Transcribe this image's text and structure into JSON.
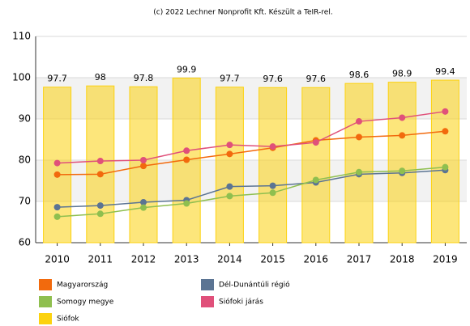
{
  "chart_data": {
    "type": "bar",
    "title": "(c) 2022 Lechner Nonprofit Kft. Készült a TeIR-rel.",
    "categories": [
      "2010",
      "2011",
      "2012",
      "2013",
      "2014",
      "2015",
      "2016",
      "2017",
      "2018",
      "2019"
    ],
    "ylim": [
      60,
      110
    ],
    "yticks": [
      60,
      70,
      80,
      90,
      100,
      110
    ],
    "grid": true,
    "series": [
      {
        "name": "Magyarország",
        "type": "line",
        "color": "#f26a0d",
        "values": [
          76.5,
          76.6,
          78.6,
          80.1,
          81.5,
          83.0,
          84.8,
          85.6,
          86.0,
          87.0
        ]
      },
      {
        "name": "Dél-Dunántúli régió",
        "type": "line",
        "color": "#5b7493",
        "values": [
          68.6,
          69.0,
          69.8,
          70.3,
          73.6,
          73.8,
          74.6,
          76.6,
          76.9,
          77.6
        ]
      },
      {
        "name": "Somogy megye",
        "type": "line",
        "color": "#8fbf4f",
        "values": [
          66.3,
          67.0,
          68.5,
          69.5,
          71.3,
          72.1,
          75.2,
          77.1,
          77.4,
          78.3
        ]
      },
      {
        "name": "Siófoki járás",
        "type": "line",
        "color": "#e0507a",
        "values": [
          79.3,
          79.8,
          80.0,
          82.3,
          83.7,
          83.3,
          84.3,
          89.4,
          90.3,
          91.8
        ]
      },
      {
        "name": "Siófok",
        "type": "bar",
        "color": "#fcd20f",
        "values": [
          97.7,
          98,
          97.8,
          99.9,
          97.7,
          97.6,
          97.6,
          98.6,
          98.9,
          99.4
        ]
      }
    ]
  }
}
